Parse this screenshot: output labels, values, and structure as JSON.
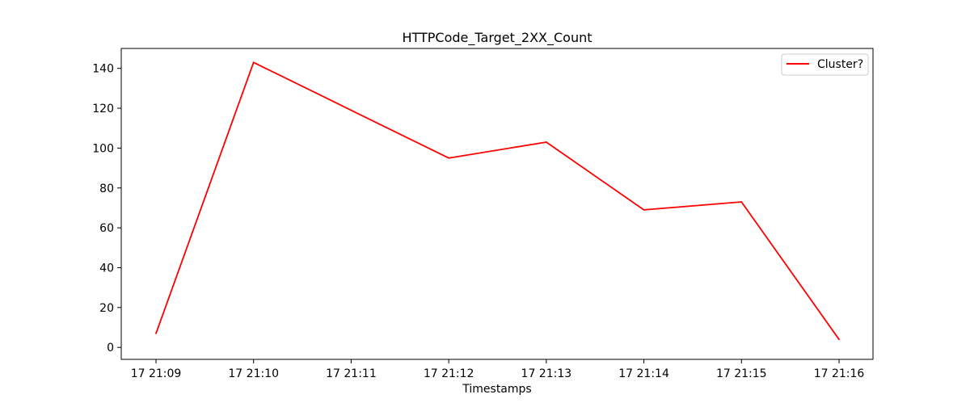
{
  "chart_data": {
    "type": "line",
    "title": "HTTPCode_Target_2XX_Count",
    "xlabel": "Timestamps",
    "ylabel": "",
    "x": [
      "17 21:09",
      "17 21:10",
      "17 21:11",
      "17 21:12",
      "17 21:13",
      "17 21:14",
      "17 21:15",
      "17 21:16"
    ],
    "x_ticks": [
      "17 21:09",
      "17 21:10",
      "17 21:11",
      "17 21:12",
      "17 21:13",
      "17 21:14",
      "17 21:15",
      "17 21:16"
    ],
    "ylim": [
      -6,
      150
    ],
    "y_ticks": [
      0,
      20,
      40,
      60,
      80,
      100,
      120,
      140
    ],
    "series": [
      {
        "name": "Cluster?",
        "color": "#ff0000",
        "values": [
          7,
          143,
          119,
          95,
          103,
          69,
          73,
          4
        ]
      }
    ],
    "legend": "top-right",
    "grid": false
  }
}
